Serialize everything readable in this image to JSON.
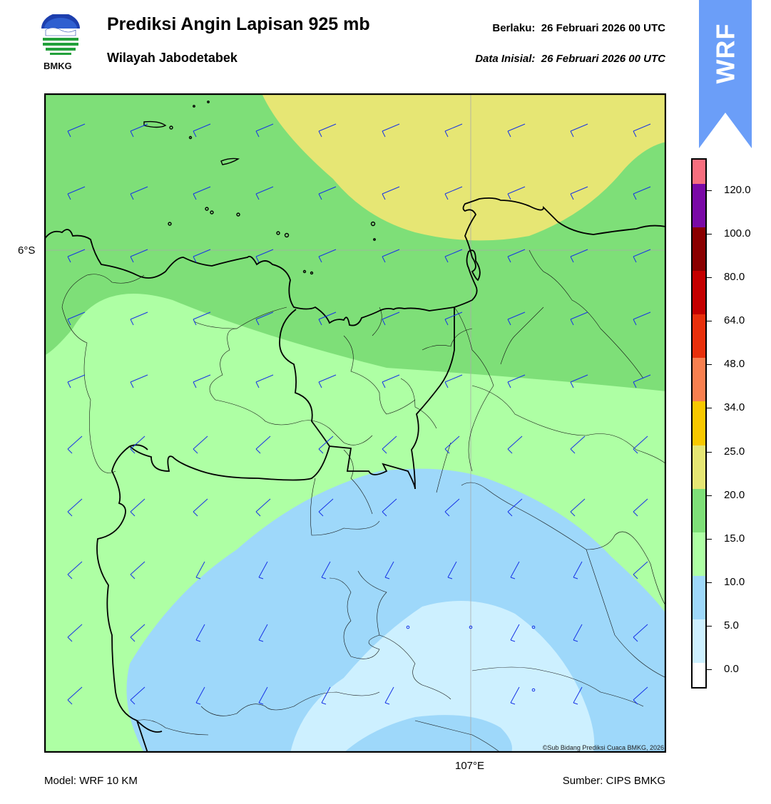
{
  "header": {
    "title": "Prediksi Angin Lapisan 925 mb",
    "subtitle": "Wilayah Jabodetabek",
    "valid_label": "Berlaku:",
    "valid_time": "26 Februari 2026 00 UTC",
    "initial_label": "Data Inisial:",
    "initial_time": "26 Februari 2026 00 UTC"
  },
  "logo": {
    "text": "BMKG",
    "icon": "bmkg-logo"
  },
  "badge": {
    "text": "WRF",
    "color": "#6b9ef8"
  },
  "map": {
    "lat_label": "6°S",
    "lon_label": "107°E",
    "copyright": "©Sub Bidang Prediksi Cuaca BMKG, 2026"
  },
  "colorbar": {
    "labels": [
      "120.0",
      "100.0",
      "80.0",
      "64.0",
      "48.0",
      "34.0",
      "25.0",
      "20.0",
      "15.0",
      "10.0",
      "5.0",
      "0.0"
    ],
    "colors": [
      "#f76e7e",
      "#7a0aa6",
      "#8a0000",
      "#c40000",
      "#e8300c",
      "#f88050",
      "#f8c800",
      "#e6e674",
      "#7edf78",
      "#aeffa4",
      "#9ed8fa",
      "#cdf0ff",
      "#ffffff"
    ]
  },
  "footer": {
    "model": "Model: WRF 10 KM",
    "source": "Sumber: CIPS BMKG"
  }
}
